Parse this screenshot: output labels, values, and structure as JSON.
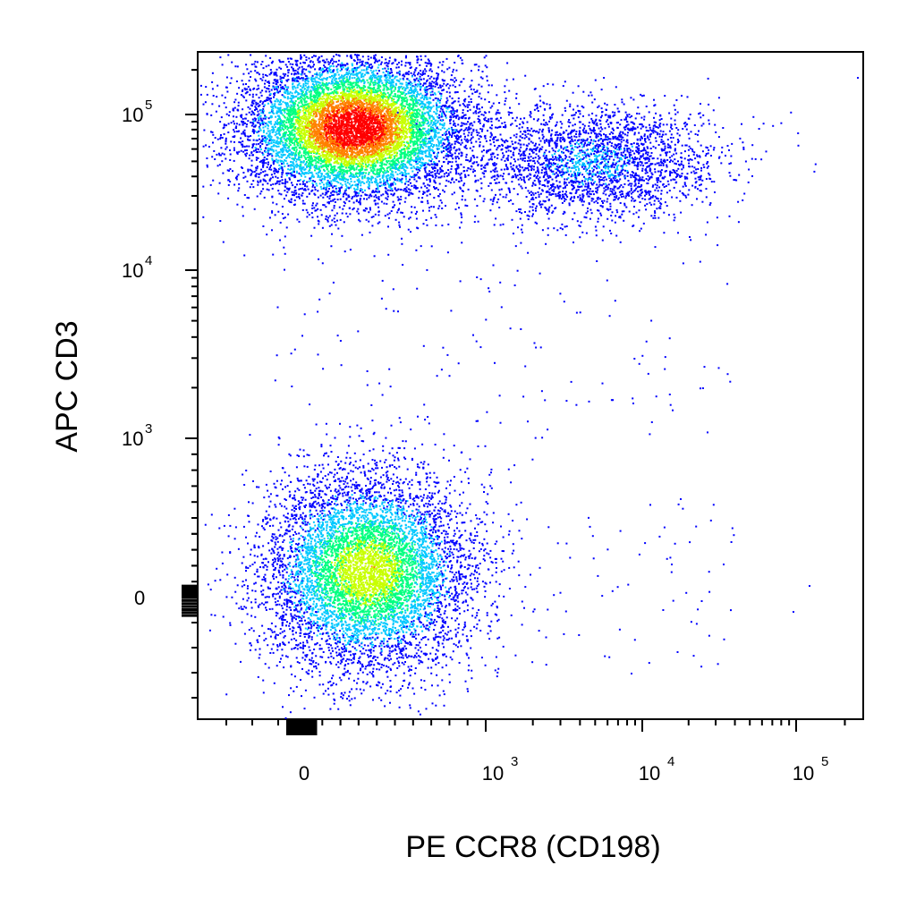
{
  "chart_data": {
    "type": "scatter",
    "subtype": "flow-cytometry-density-dot-plot",
    "xlabel": "PE CCR8 (CD198)",
    "ylabel": "APC  CD3",
    "x_scale": "biexponential",
    "y_scale": "biexponential",
    "x_ticks": [
      {
        "value": 0,
        "base": "0",
        "exp": ""
      },
      {
        "value": 1000,
        "base": "10",
        "exp": "3"
      },
      {
        "value": 10000,
        "base": "10",
        "exp": "4"
      },
      {
        "value": 100000,
        "base": "10",
        "exp": "5"
      }
    ],
    "y_ticks": [
      {
        "value": 0,
        "base": "0",
        "exp": ""
      },
      {
        "value": 1000,
        "base": "10",
        "exp": "3"
      },
      {
        "value": 10000,
        "base": "10",
        "exp": "4"
      },
      {
        "value": 100000,
        "base": "10",
        "exp": "5"
      }
    ],
    "xlim": [
      -300,
      250000
    ],
    "ylim": [
      -400,
      250000
    ],
    "grid": false,
    "colormap": [
      "#0000ff",
      "#00c8ff",
      "#00ff80",
      "#c8ff00",
      "#ff8000",
      "#ff0000"
    ],
    "populations": [
      {
        "x_center": 70,
        "y_center": 80000,
        "density": "high",
        "peak_color": "red"
      },
      {
        "x_center": 3500,
        "y_center": 45000,
        "density": "low",
        "peak_color": "blue"
      },
      {
        "x_center": 120,
        "y_center": 80,
        "density": "medium",
        "peak_color": "green"
      }
    ]
  }
}
